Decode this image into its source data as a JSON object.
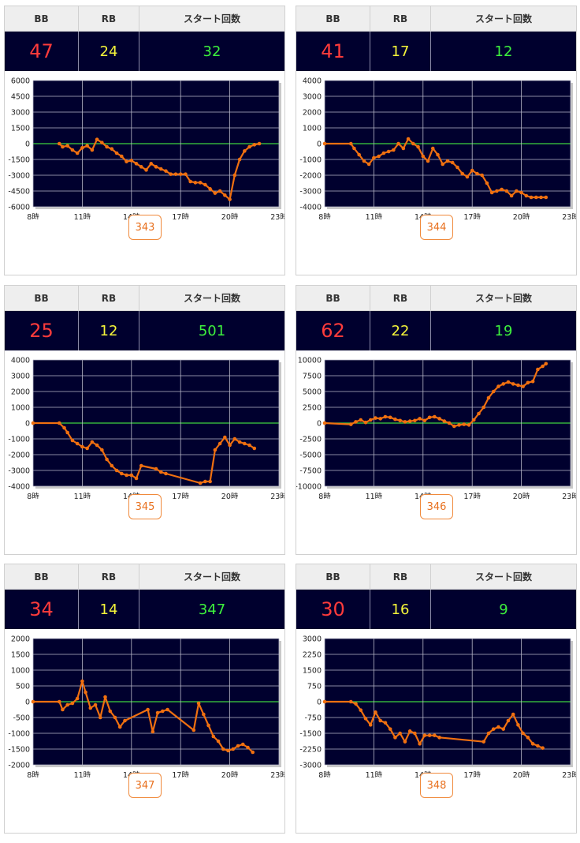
{
  "headers": {
    "bb": "BB",
    "rb": "RB",
    "start": "スタート回数"
  },
  "colors": {
    "bb": "#ff3b3b",
    "rb": "#f5f53a",
    "start": "#3df03d",
    "line": "#f07010",
    "plot_bg": "#00002e",
    "zero_line": "#3fd43f",
    "button": "#e8701e"
  },
  "machines": [
    {
      "number": "343",
      "bb": "47",
      "rb": "24",
      "start": "32"
    },
    {
      "number": "344",
      "bb": "41",
      "rb": "17",
      "start": "12"
    },
    {
      "number": "345",
      "bb": "25",
      "rb": "12",
      "start": "501"
    },
    {
      "number": "346",
      "bb": "62",
      "rb": "22",
      "start": "19"
    },
    {
      "number": "347",
      "bb": "34",
      "rb": "14",
      "start": "347"
    },
    {
      "number": "348",
      "bb": "30",
      "rb": "16",
      "start": "9"
    }
  ],
  "chart_data": [
    {
      "type": "line",
      "x_ticks": [
        "8時",
        "11時",
        "14時",
        "17時",
        "20時",
        "23時"
      ],
      "xlim": [
        8,
        23
      ],
      "ylim": [
        -6000,
        6000
      ],
      "y_ticks": [
        6000,
        4500,
        3000,
        1500,
        0,
        -1500,
        -3000,
        -4500,
        -6000
      ],
      "x": [
        9.6,
        9.8,
        10.1,
        10.4,
        10.7,
        11.0,
        11.3,
        11.6,
        11.9,
        12.2,
        12.5,
        12.8,
        13.1,
        13.4,
        13.7,
        14.0,
        14.3,
        14.6,
        14.9,
        15.2,
        15.5,
        15.8,
        16.1,
        16.4,
        16.7,
        17.0,
        17.3,
        17.6,
        17.9,
        18.2,
        18.5,
        18.8,
        19.1,
        19.4,
        19.7,
        20.0,
        20.3,
        20.6,
        20.9,
        21.2,
        21.5,
        21.8
      ],
      "y": [
        0,
        -300,
        -200,
        -600,
        -900,
        -400,
        -200,
        -600,
        400,
        100,
        -300,
        -500,
        -900,
        -1200,
        -1700,
        -1600,
        -1900,
        -2200,
        -2500,
        -1900,
        -2200,
        -2400,
        -2600,
        -2900,
        -2900,
        -2900,
        -2900,
        -3600,
        -3700,
        -3700,
        -3900,
        -4300,
        -4700,
        -4500,
        -4900,
        -5300,
        -3000,
        -1500,
        -700,
        -300,
        -100,
        0
      ]
    },
    {
      "type": "line",
      "x_ticks": [
        "8時",
        "11時",
        "14時",
        "17時",
        "20時",
        "23時"
      ],
      "xlim": [
        8,
        23
      ],
      "ylim": [
        -4000,
        4000
      ],
      "y_ticks": [
        4000,
        3000,
        2000,
        1000,
        0,
        -1000,
        -2000,
        -3000,
        -4000
      ],
      "x": [
        8,
        9.6,
        9.8,
        10.1,
        10.4,
        10.7,
        11.0,
        11.3,
        11.6,
        11.9,
        12.2,
        12.5,
        12.8,
        13.1,
        13.4,
        13.7,
        14.0,
        14.3,
        14.6,
        14.9,
        15.2,
        15.5,
        15.8,
        16.1,
        16.4,
        16.7,
        17.0,
        17.3,
        17.6,
        17.9,
        18.2,
        18.5,
        18.8,
        19.1,
        19.4,
        19.7,
        20.0,
        20.3,
        20.6,
        20.9,
        21.2,
        21.5
      ],
      "y": [
        0,
        0,
        -300,
        -700,
        -1100,
        -1300,
        -900,
        -800,
        -600,
        -500,
        -400,
        0,
        -300,
        300,
        0,
        -200,
        -800,
        -1100,
        -300,
        -700,
        -1300,
        -1100,
        -1200,
        -1500,
        -1900,
        -2100,
        -1700,
        -1900,
        -2000,
        -2500,
        -3100,
        -3000,
        -2900,
        -3000,
        -3300,
        -3000,
        -3100,
        -3300,
        -3400,
        -3400,
        -3400,
        -3400
      ]
    },
    {
      "type": "line",
      "x_ticks": [
        "8時",
        "11時",
        "14時",
        "17時",
        "20時",
        "23時"
      ],
      "xlim": [
        8,
        23
      ],
      "ylim": [
        -4000,
        4000
      ],
      "y_ticks": [
        4000,
        3000,
        2000,
        1000,
        0,
        -1000,
        -2000,
        -3000,
        -4000
      ],
      "x": [
        8,
        9.6,
        9.9,
        10.1,
        10.4,
        10.7,
        11.0,
        11.3,
        11.6,
        11.9,
        12.2,
        12.5,
        12.8,
        13.1,
        13.4,
        13.7,
        14.0,
        14.3,
        14.6,
        15.5,
        15.8,
        16.1,
        18.2,
        18.5,
        18.8,
        19.1,
        19.4,
        19.7,
        20.0,
        20.3,
        20.6,
        20.9,
        21.2,
        21.5
      ],
      "y": [
        0,
        0,
        -300,
        -600,
        -1100,
        -1300,
        -1500,
        -1600,
        -1200,
        -1400,
        -1700,
        -2300,
        -2700,
        -3000,
        -3200,
        -3300,
        -3300,
        -3500,
        -2700,
        -2900,
        -3100,
        -3200,
        -3800,
        -3700,
        -3700,
        -1700,
        -1300,
        -900,
        -1400,
        -1000,
        -1200,
        -1300,
        -1400,
        -1600
      ]
    },
    {
      "type": "line",
      "x_ticks": [
        "8時",
        "11時",
        "14時",
        "17時",
        "20時",
        "23時"
      ],
      "xlim": [
        8,
        23
      ],
      "ylim": [
        -10000,
        10000
      ],
      "y_ticks": [
        10000,
        7500,
        5000,
        2500,
        0,
        -2500,
        -5000,
        -7500,
        -10000
      ],
      "x": [
        8,
        9.6,
        9.9,
        10.2,
        10.5,
        10.8,
        11.1,
        11.4,
        11.7,
        12.0,
        12.3,
        12.6,
        12.9,
        13.2,
        13.5,
        13.8,
        14.1,
        14.4,
        14.7,
        15.0,
        15.3,
        15.6,
        15.9,
        16.2,
        16.5,
        16.8,
        17.1,
        17.4,
        17.7,
        18.0,
        18.3,
        18.6,
        18.9,
        19.2,
        19.5,
        19.8,
        20.1,
        20.4,
        20.7,
        21.0,
        21.3,
        21.5
      ],
      "y": [
        0,
        -200,
        200,
        500,
        100,
        500,
        800,
        700,
        1000,
        900,
        600,
        400,
        200,
        300,
        400,
        700,
        400,
        900,
        1000,
        700,
        300,
        0,
        -500,
        -300,
        -200,
        -300,
        500,
        1500,
        2500,
        4000,
        5000,
        5800,
        6200,
        6500,
        6200,
        6000,
        5800,
        6400,
        6600,
        8500,
        9000,
        9400
      ]
    },
    {
      "type": "line",
      "x_ticks": [
        "8時",
        "11時",
        "14時",
        "17時",
        "20時",
        "23時"
      ],
      "xlim": [
        8,
        23
      ],
      "ylim": [
        -2000,
        2000
      ],
      "y_ticks": [
        2000,
        1500,
        1000,
        500,
        0,
        -500,
        -1000,
        -1500,
        -2000
      ],
      "x": [
        8,
        9.6,
        9.8,
        10.1,
        10.4,
        10.7,
        11.0,
        11.2,
        11.5,
        11.8,
        12.1,
        12.4,
        12.7,
        13.0,
        13.3,
        13.6,
        15.0,
        15.3,
        15.6,
        15.9,
        16.2,
        17.8,
        18.1,
        18.4,
        18.7,
        19.0,
        19.3,
        19.6,
        19.9,
        20.2,
        20.5,
        20.8,
        21.1,
        21.4
      ],
      "y": [
        0,
        0,
        -250,
        -100,
        -50,
        100,
        650,
        300,
        -200,
        -100,
        -500,
        150,
        -300,
        -500,
        -800,
        -600,
        -250,
        -950,
        -350,
        -300,
        -250,
        -900,
        -50,
        -400,
        -750,
        -1100,
        -1250,
        -1500,
        -1550,
        -1500,
        -1400,
        -1350,
        -1450,
        -1600
      ]
    },
    {
      "type": "line",
      "x_ticks": [
        "8時",
        "11時",
        "14時",
        "17時",
        "20時",
        "23時"
      ],
      "xlim": [
        8,
        23
      ],
      "ylim": [
        -3000,
        3000
      ],
      "y_ticks": [
        3000,
        2250,
        1500,
        750,
        0,
        -750,
        -1500,
        -2250,
        -3000
      ],
      "x": [
        8,
        9.6,
        9.9,
        10.2,
        10.5,
        10.8,
        11.1,
        11.4,
        11.7,
        12.0,
        12.3,
        12.6,
        12.9,
        13.2,
        13.5,
        13.8,
        14.1,
        14.4,
        14.7,
        15.0,
        17.7,
        18.0,
        18.3,
        18.6,
        18.9,
        19.2,
        19.5,
        19.8,
        20.1,
        20.4,
        20.7,
        21.0,
        21.3
      ],
      "y": [
        0,
        0,
        -100,
        -400,
        -800,
        -1100,
        -500,
        -900,
        -1000,
        -1300,
        -1700,
        -1500,
        -1900,
        -1400,
        -1500,
        -2000,
        -1600,
        -1600,
        -1600,
        -1700,
        -1900,
        -1500,
        -1300,
        -1200,
        -1300,
        -900,
        -600,
        -1100,
        -1500,
        -1700,
        -2000,
        -2100,
        -2200
      ]
    }
  ]
}
